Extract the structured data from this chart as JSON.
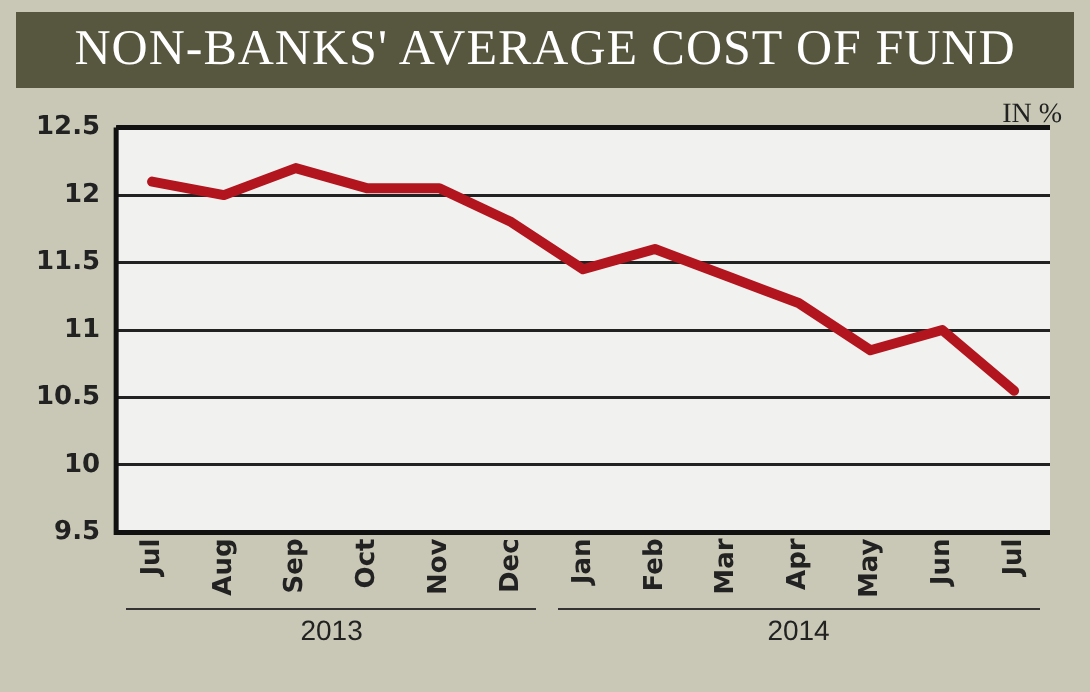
{
  "chart_data": {
    "type": "line",
    "title": "NON-BANKS' AVERAGE COST OF FUND",
    "ylabel": "IN %",
    "categories": [
      "Jul",
      "Aug",
      "Sep",
      "Oct",
      "Nov",
      "Dec",
      "Jan",
      "Feb",
      "Mar",
      "Apr",
      "May",
      "Jun",
      "Jul"
    ],
    "series": [
      {
        "color": "#b3151e",
        "values": [
          12.1,
          12.0,
          12.2,
          12.05,
          12.05,
          11.8,
          11.45,
          11.6,
          11.4,
          11.2,
          10.85,
          11.0,
          10.55
        ]
      }
    ],
    "ylim": [
      9.5,
      12.5
    ],
    "yticks": [
      9.5,
      10,
      10.5,
      11,
      11.5,
      12,
      12.5
    ],
    "grid": "y",
    "legend": false,
    "marker": "none",
    "line_style": "solid",
    "annotations": [
      "2013",
      "2014"
    ]
  }
}
